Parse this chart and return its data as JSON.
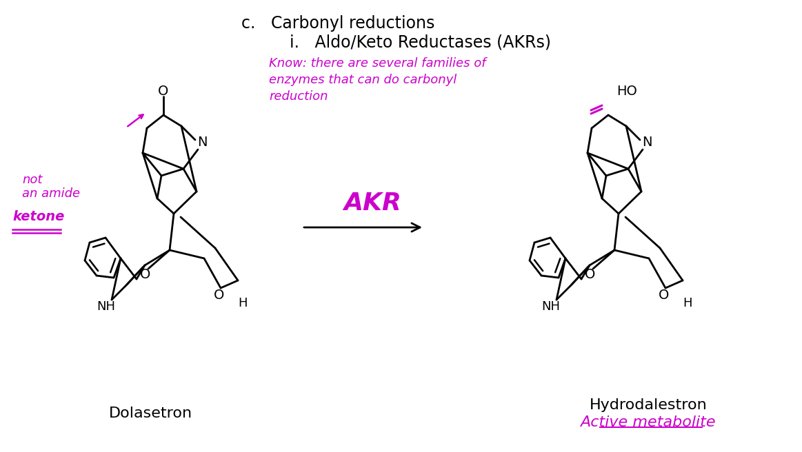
{
  "title_c": "c.   Carbonyl reductions",
  "title_i": "i.   Aldo/Keto Reductases (AKRs)",
  "hw_line1": "Know: there are several families of",
  "hw_line2": "enzymes that can do carbonyl",
  "hw_line3": "reduction",
  "left1": "not",
  "left2": "an amide",
  "left3": "ketone",
  "akr_label": "AKR",
  "dol_label": "Dolasetron",
  "hyd_label1": "Hydrodalestron",
  "hyd_label2": "Active metabolite",
  "magenta": "#CC00CC",
  "black": "#000000",
  "bg": "#FFFFFF",
  "fig_w": 11.63,
  "fig_h": 6.56,
  "dpi": 100
}
